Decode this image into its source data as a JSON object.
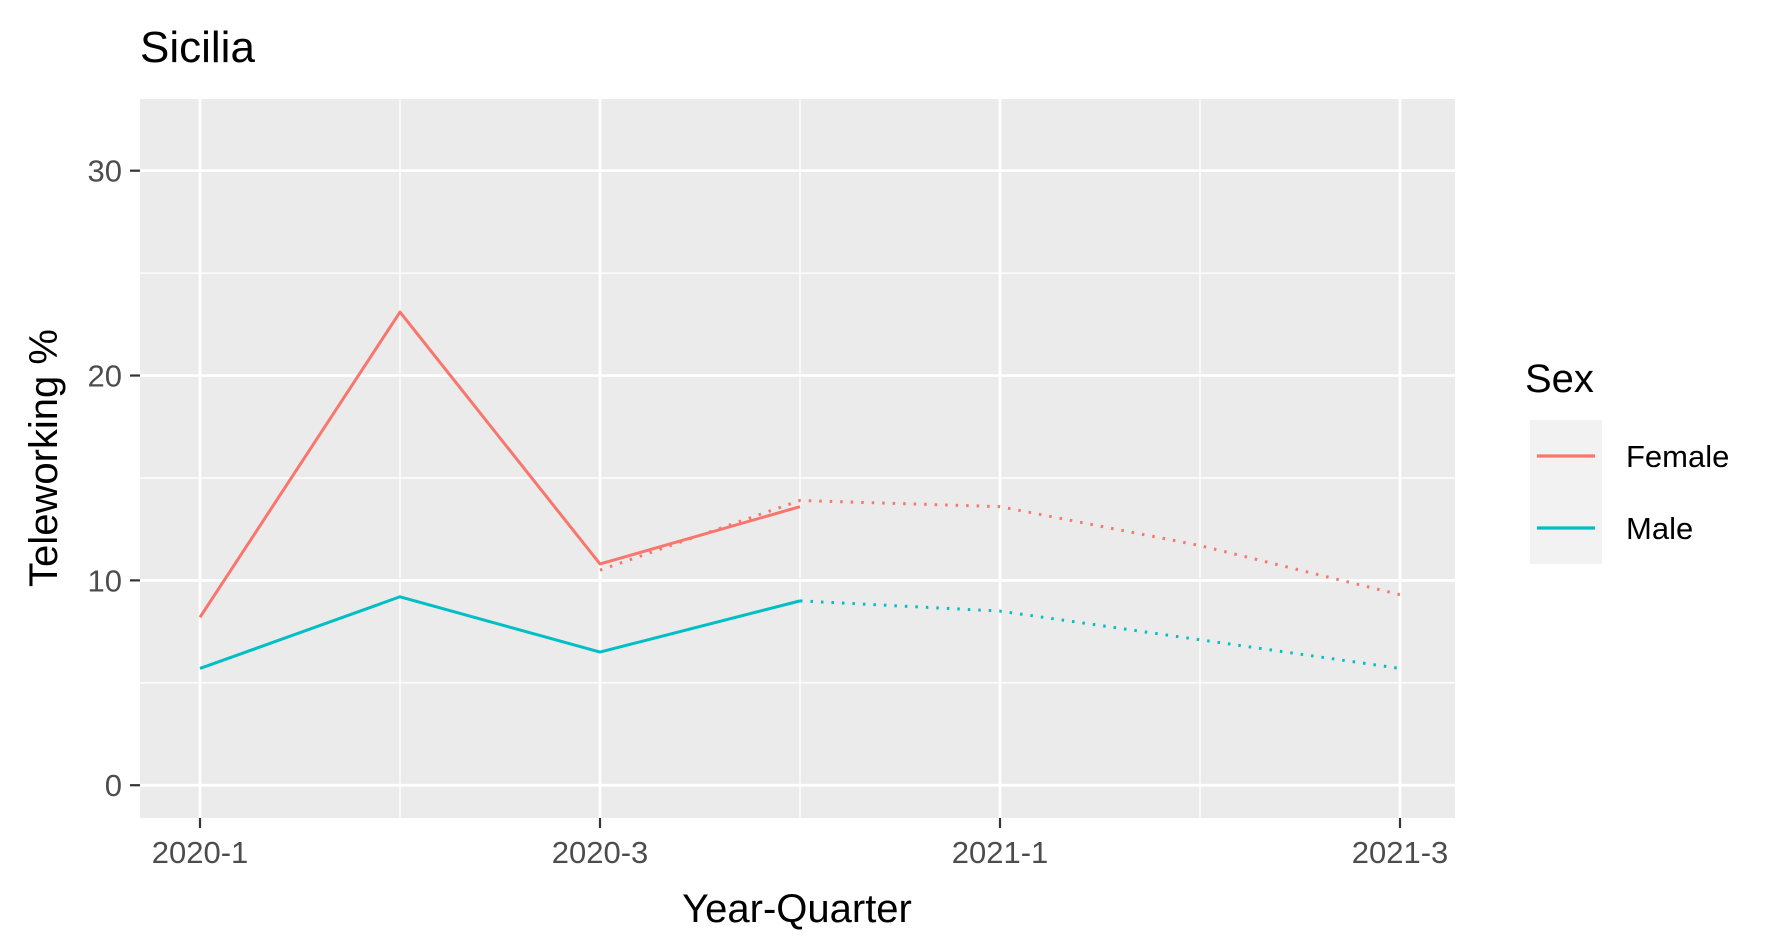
{
  "chart_data": {
    "type": "line",
    "title": "Sicilia",
    "xlabel": "Year-Quarter",
    "ylabel": "Teleworking %",
    "x": [
      "2020-1",
      "2020-2",
      "2020-3",
      "2020-4",
      "2021-1",
      "2021-2",
      "2021-3"
    ],
    "x_tick_labels": [
      "2020-1",
      "2020-3",
      "2021-1",
      "2021-3"
    ],
    "y_ticks": [
      0,
      10,
      20,
      30
    ],
    "ylim": [
      -1.6,
      33.5
    ],
    "grid": true,
    "legend": {
      "title": "Sex",
      "position": "right"
    },
    "series": [
      {
        "name": "Female",
        "color": "#F8766D",
        "observed": {
          "x": [
            "2020-1",
            "2020-2",
            "2020-3",
            "2020-4"
          ],
          "values": [
            8.2,
            23.1,
            10.8,
            13.6
          ]
        },
        "forecast": {
          "x": [
            "2020-3",
            "2020-4",
            "2021-1",
            "2021-2",
            "2021-3"
          ],
          "values": [
            10.5,
            13.9,
            13.6,
            11.7,
            9.3
          ]
        }
      },
      {
        "name": "Male",
        "color": "#00BFC4",
        "observed": {
          "x": [
            "2020-1",
            "2020-2",
            "2020-3",
            "2020-4"
          ],
          "values": [
            5.7,
            9.2,
            6.5,
            9.0
          ]
        },
        "forecast": {
          "x": [
            "2020-4",
            "2021-1",
            "2021-2",
            "2021-3"
          ],
          "values": [
            9.0,
            8.5,
            7.1,
            5.7
          ]
        }
      }
    ]
  }
}
